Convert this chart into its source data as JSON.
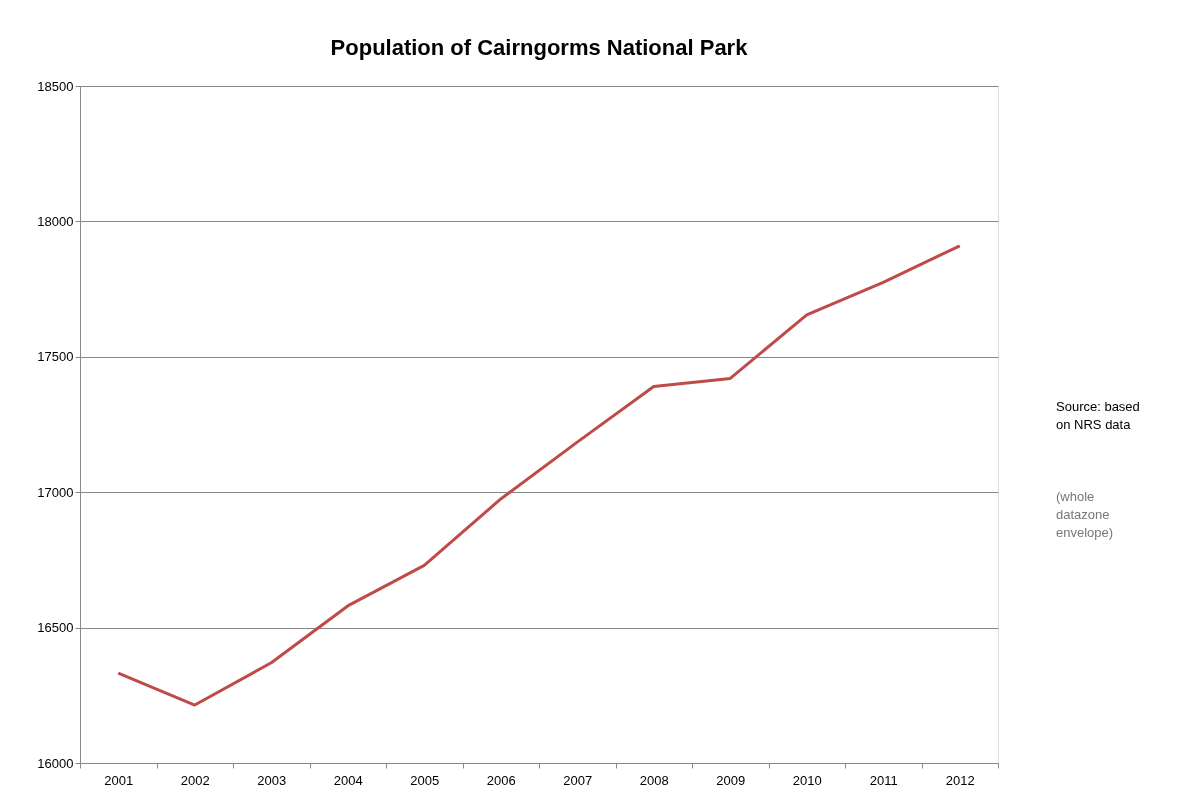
{
  "chart_data": {
    "type": "line",
    "title": "Population of Cairngorms National Park",
    "categories": [
      "2001",
      "2002",
      "2003",
      "2004",
      "2005",
      "2006",
      "2007",
      "2008",
      "2009",
      "2010",
      "2011",
      "2012"
    ],
    "series": [
      {
        "color": "#be4b48",
        "values": [
          16332,
          16214,
          16370,
          16580,
          16730,
          16975,
          17185,
          17390,
          17420,
          17655,
          17775,
          17910
        ]
      }
    ],
    "ylim": [
      16000,
      18500
    ],
    "yticks": [
      16000,
      16500,
      17000,
      17500,
      18000,
      18500
    ],
    "grid": "y",
    "marker": "none",
    "line_style": "solid",
    "annotations": [
      "Source: based on NRS data",
      "(whole datazone envelope)"
    ]
  }
}
